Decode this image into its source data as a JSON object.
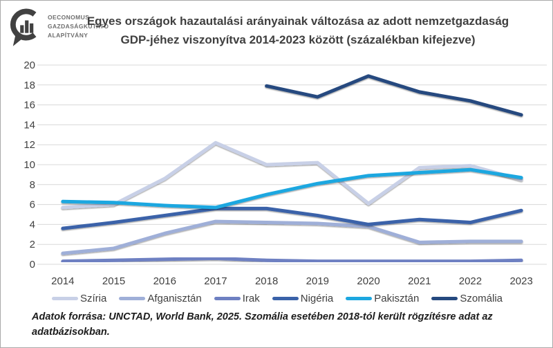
{
  "logo": {
    "line1": "OECONOMUS",
    "line2": "GAZDASÁGKUTATÓ",
    "line3": "ALAPÍTVÁNY"
  },
  "title": "Egyes országok hazautalási arányainak változása az adott nemzetgazdaság GDP-jéhez viszonyítva 2014-2023 között (százalékban kifejezve)",
  "source_note": "Adatok forrása: UNCTAD, World Bank, 2025. Szomália esetében 2018-tól került rögzítésre adat az adatbázisokban.",
  "chart_data": {
    "type": "line",
    "title": "Egyes országok hazautalási arányainak változása az adott nemzetgazdaság GDP-jéhez viszonyítva 2014-2023 között (százalékban kifejezve)",
    "categories": [
      "2014",
      "2015",
      "2016",
      "2017",
      "2018",
      "2019",
      "2020",
      "2021",
      "2022",
      "2023"
    ],
    "xlabel": "",
    "ylabel": "",
    "ylim": [
      0,
      20
    ],
    "yticks": [
      0,
      2,
      4,
      6,
      8,
      10,
      12,
      14,
      16,
      18,
      20
    ],
    "grid": true,
    "legend_position": "bottom",
    "series": [
      {
        "name": "Szíria",
        "color": "#c8d0e7",
        "values": [
          5.7,
          6.0,
          8.6,
          12.2,
          10.0,
          10.2,
          6.1,
          9.7,
          9.9,
          8.5
        ]
      },
      {
        "name": "Afganisztán",
        "color": "#9fafd8",
        "values": [
          1.1,
          1.6,
          3.1,
          4.3,
          4.2,
          4.1,
          3.8,
          2.2,
          2.3,
          2.3
        ]
      },
      {
        "name": "Irak",
        "color": "#6e80c2",
        "values": [
          0.3,
          0.4,
          0.5,
          0.6,
          0.4,
          0.3,
          0.3,
          0.3,
          0.3,
          0.4
        ]
      },
      {
        "name": "Nigéria",
        "color": "#3a62a9",
        "values": [
          3.6,
          4.2,
          4.9,
          5.6,
          5.6,
          4.9,
          4.0,
          4.5,
          4.2,
          5.4
        ]
      },
      {
        "name": "Pakisztán",
        "color": "#1ca7e0",
        "values": [
          6.3,
          6.2,
          5.9,
          5.7,
          7.0,
          8.1,
          8.9,
          9.2,
          9.5,
          8.7
        ]
      },
      {
        "name": "Szomália",
        "color": "#25497f",
        "values": [
          null,
          null,
          null,
          null,
          17.9,
          16.8,
          18.9,
          17.3,
          16.4,
          15.0
        ]
      }
    ]
  },
  "colors": {
    "grid": "#d8d8d8",
    "axis_text": "#404040",
    "title_text": "#3f3f3f",
    "logo": "#414141"
  }
}
